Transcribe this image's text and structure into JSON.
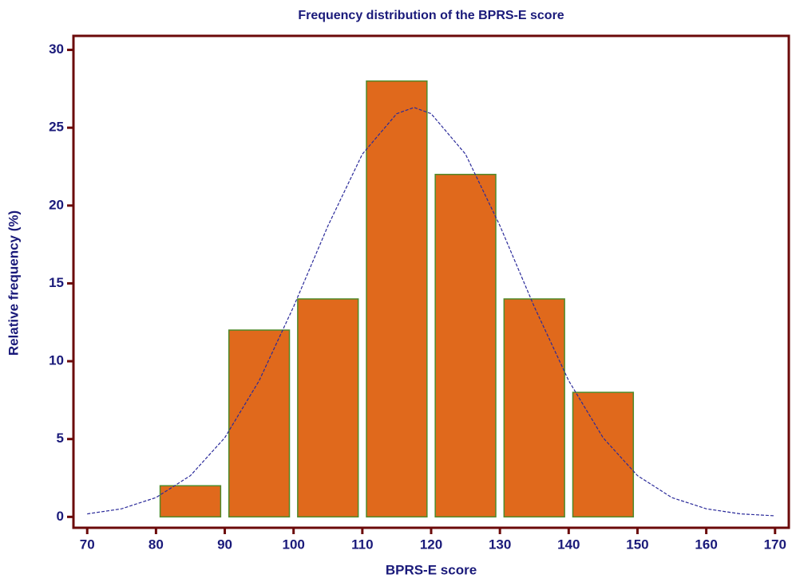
{
  "chart_data": {
    "type": "histogram",
    "title": "Frequency distribution of the BPRS-E score",
    "xlabel": "BPRS-E score",
    "ylabel": "Relative frequency (%)",
    "bins": [
      80,
      90,
      100,
      110,
      120,
      130,
      140,
      150
    ],
    "values": [
      2,
      12,
      14,
      28,
      22,
      14,
      8
    ],
    "color": "#e0691c",
    "edgecolor": "#4e8a2a",
    "curve": {
      "x": [
        70,
        75,
        80,
        85,
        90,
        95,
        100,
        105,
        110,
        115,
        117.5,
        120,
        125,
        130,
        135,
        140,
        145,
        150,
        155,
        160,
        165,
        170
      ],
      "values": [
        0.19,
        0.52,
        1.24,
        2.65,
        5.08,
        8.75,
        13.5,
        18.7,
        23.3,
        25.9,
        26.3,
        25.9,
        23.3,
        18.7,
        13.5,
        8.75,
        5.08,
        2.65,
        1.24,
        0.52,
        0.19,
        0.07
      ],
      "color": "#2a2a9a"
    },
    "xlim": [
      68,
      172
    ],
    "ylim": [
      -0.7,
      30.9
    ],
    "xticks": [
      70,
      80,
      90,
      100,
      110,
      120,
      130,
      140,
      150,
      160,
      170
    ],
    "yticks": [
      0,
      5,
      10,
      15,
      20,
      25,
      30
    ],
    "frame_color": "#6b0a0a"
  }
}
